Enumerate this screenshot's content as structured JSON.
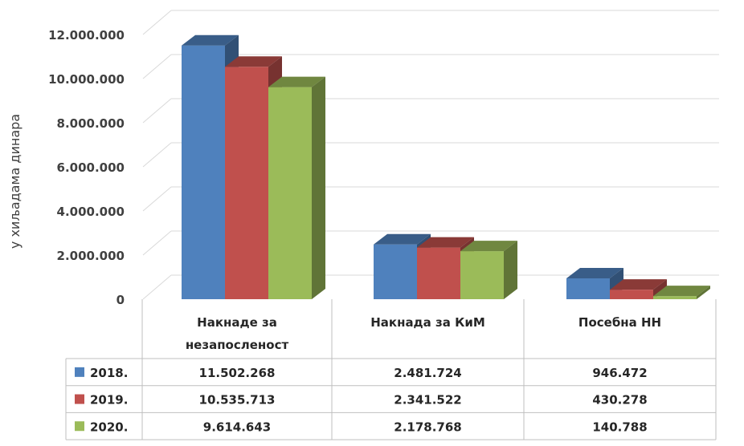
{
  "colors": {
    "series_2018": "#4F81BD",
    "series_2019": "#C0504D",
    "series_2020": "#9BBB59",
    "grid": "#D9D9D9",
    "table_border": "#BFBFBF"
  },
  "chart_data": {
    "type": "bar",
    "style": "3d-clustered-column-with-data-table",
    "ylabel": "у хиљадама динара",
    "ylim": [
      0,
      12000000
    ],
    "yticks": [
      "0",
      "2.000.000",
      "4.000.000",
      "6.000.000",
      "8.000.000",
      "10.000.000",
      "12.000.000"
    ],
    "categories": [
      [
        "Накнаде за",
        "незапосленост"
      ],
      [
        "Накнада за КиМ"
      ],
      [
        "Посебна НН"
      ]
    ],
    "series": [
      {
        "name": "2018.",
        "values": [
          11502268,
          2481724,
          946472
        ],
        "labels": [
          "11.502.268",
          "2.481.724",
          "946.472"
        ]
      },
      {
        "name": "2019.",
        "values": [
          10535713,
          2341522,
          430278
        ],
        "labels": [
          "10.535.713",
          "2.341.522",
          "430.278"
        ]
      },
      {
        "name": "2020.",
        "values": [
          9614643,
          2178768,
          140788
        ],
        "labels": [
          "9.614.643",
          "2.178.768",
          "140.788"
        ]
      }
    ],
    "grid": true,
    "legend": "data-table"
  }
}
